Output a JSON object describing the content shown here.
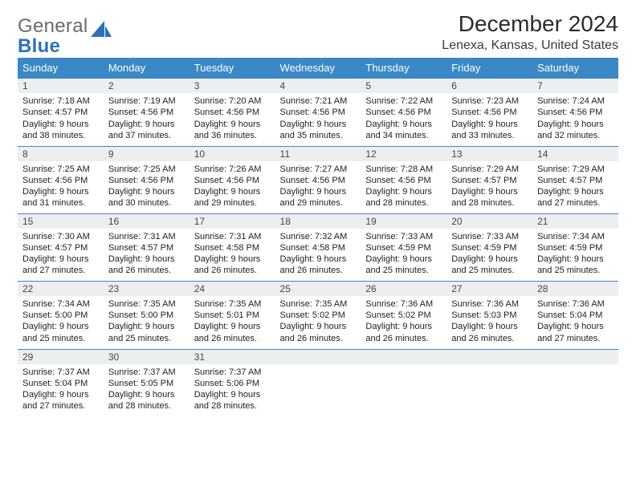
{
  "brand": {
    "part1": "General",
    "part2": "Blue"
  },
  "title": "December 2024",
  "location": "Lenexa, Kansas, United States",
  "colors": {
    "header_bg": "#3b88c6",
    "header_text": "#ffffff",
    "daynum_bg": "#eceef0",
    "row_divider": "#3b88c6",
    "logo_gray": "#6a6a6a",
    "logo_blue": "#2f71b8",
    "page_bg": "#ffffff",
    "text": "#222222"
  },
  "day_headers": [
    "Sunday",
    "Monday",
    "Tuesday",
    "Wednesday",
    "Thursday",
    "Friday",
    "Saturday"
  ],
  "weeks": [
    [
      {
        "n": "1",
        "sr": "7:18 AM",
        "ss": "4:57 PM",
        "dl": "9 hours and 38 minutes."
      },
      {
        "n": "2",
        "sr": "7:19 AM",
        "ss": "4:56 PM",
        "dl": "9 hours and 37 minutes."
      },
      {
        "n": "3",
        "sr": "7:20 AM",
        "ss": "4:56 PM",
        "dl": "9 hours and 36 minutes."
      },
      {
        "n": "4",
        "sr": "7:21 AM",
        "ss": "4:56 PM",
        "dl": "9 hours and 35 minutes."
      },
      {
        "n": "5",
        "sr": "7:22 AM",
        "ss": "4:56 PM",
        "dl": "9 hours and 34 minutes."
      },
      {
        "n": "6",
        "sr": "7:23 AM",
        "ss": "4:56 PM",
        "dl": "9 hours and 33 minutes."
      },
      {
        "n": "7",
        "sr": "7:24 AM",
        "ss": "4:56 PM",
        "dl": "9 hours and 32 minutes."
      }
    ],
    [
      {
        "n": "8",
        "sr": "7:25 AM",
        "ss": "4:56 PM",
        "dl": "9 hours and 31 minutes."
      },
      {
        "n": "9",
        "sr": "7:25 AM",
        "ss": "4:56 PM",
        "dl": "9 hours and 30 minutes."
      },
      {
        "n": "10",
        "sr": "7:26 AM",
        "ss": "4:56 PM",
        "dl": "9 hours and 29 minutes."
      },
      {
        "n": "11",
        "sr": "7:27 AM",
        "ss": "4:56 PM",
        "dl": "9 hours and 29 minutes."
      },
      {
        "n": "12",
        "sr": "7:28 AM",
        "ss": "4:56 PM",
        "dl": "9 hours and 28 minutes."
      },
      {
        "n": "13",
        "sr": "7:29 AM",
        "ss": "4:57 PM",
        "dl": "9 hours and 28 minutes."
      },
      {
        "n": "14",
        "sr": "7:29 AM",
        "ss": "4:57 PM",
        "dl": "9 hours and 27 minutes."
      }
    ],
    [
      {
        "n": "15",
        "sr": "7:30 AM",
        "ss": "4:57 PM",
        "dl": "9 hours and 27 minutes."
      },
      {
        "n": "16",
        "sr": "7:31 AM",
        "ss": "4:57 PM",
        "dl": "9 hours and 26 minutes."
      },
      {
        "n": "17",
        "sr": "7:31 AM",
        "ss": "4:58 PM",
        "dl": "9 hours and 26 minutes."
      },
      {
        "n": "18",
        "sr": "7:32 AM",
        "ss": "4:58 PM",
        "dl": "9 hours and 26 minutes."
      },
      {
        "n": "19",
        "sr": "7:33 AM",
        "ss": "4:59 PM",
        "dl": "9 hours and 25 minutes."
      },
      {
        "n": "20",
        "sr": "7:33 AM",
        "ss": "4:59 PM",
        "dl": "9 hours and 25 minutes."
      },
      {
        "n": "21",
        "sr": "7:34 AM",
        "ss": "4:59 PM",
        "dl": "9 hours and 25 minutes."
      }
    ],
    [
      {
        "n": "22",
        "sr": "7:34 AM",
        "ss": "5:00 PM",
        "dl": "9 hours and 25 minutes."
      },
      {
        "n": "23",
        "sr": "7:35 AM",
        "ss": "5:00 PM",
        "dl": "9 hours and 25 minutes."
      },
      {
        "n": "24",
        "sr": "7:35 AM",
        "ss": "5:01 PM",
        "dl": "9 hours and 26 minutes."
      },
      {
        "n": "25",
        "sr": "7:35 AM",
        "ss": "5:02 PM",
        "dl": "9 hours and 26 minutes."
      },
      {
        "n": "26",
        "sr": "7:36 AM",
        "ss": "5:02 PM",
        "dl": "9 hours and 26 minutes."
      },
      {
        "n": "27",
        "sr": "7:36 AM",
        "ss": "5:03 PM",
        "dl": "9 hours and 26 minutes."
      },
      {
        "n": "28",
        "sr": "7:36 AM",
        "ss": "5:04 PM",
        "dl": "9 hours and 27 minutes."
      }
    ],
    [
      {
        "n": "29",
        "sr": "7:37 AM",
        "ss": "5:04 PM",
        "dl": "9 hours and 27 minutes."
      },
      {
        "n": "30",
        "sr": "7:37 AM",
        "ss": "5:05 PM",
        "dl": "9 hours and 28 minutes."
      },
      {
        "n": "31",
        "sr": "7:37 AM",
        "ss": "5:06 PM",
        "dl": "9 hours and 28 minutes."
      },
      {
        "empty": true
      },
      {
        "empty": true
      },
      {
        "empty": true
      },
      {
        "empty": true
      }
    ]
  ],
  "labels": {
    "sunrise": "Sunrise: ",
    "sunset": "Sunset: ",
    "daylight": "Daylight: "
  }
}
